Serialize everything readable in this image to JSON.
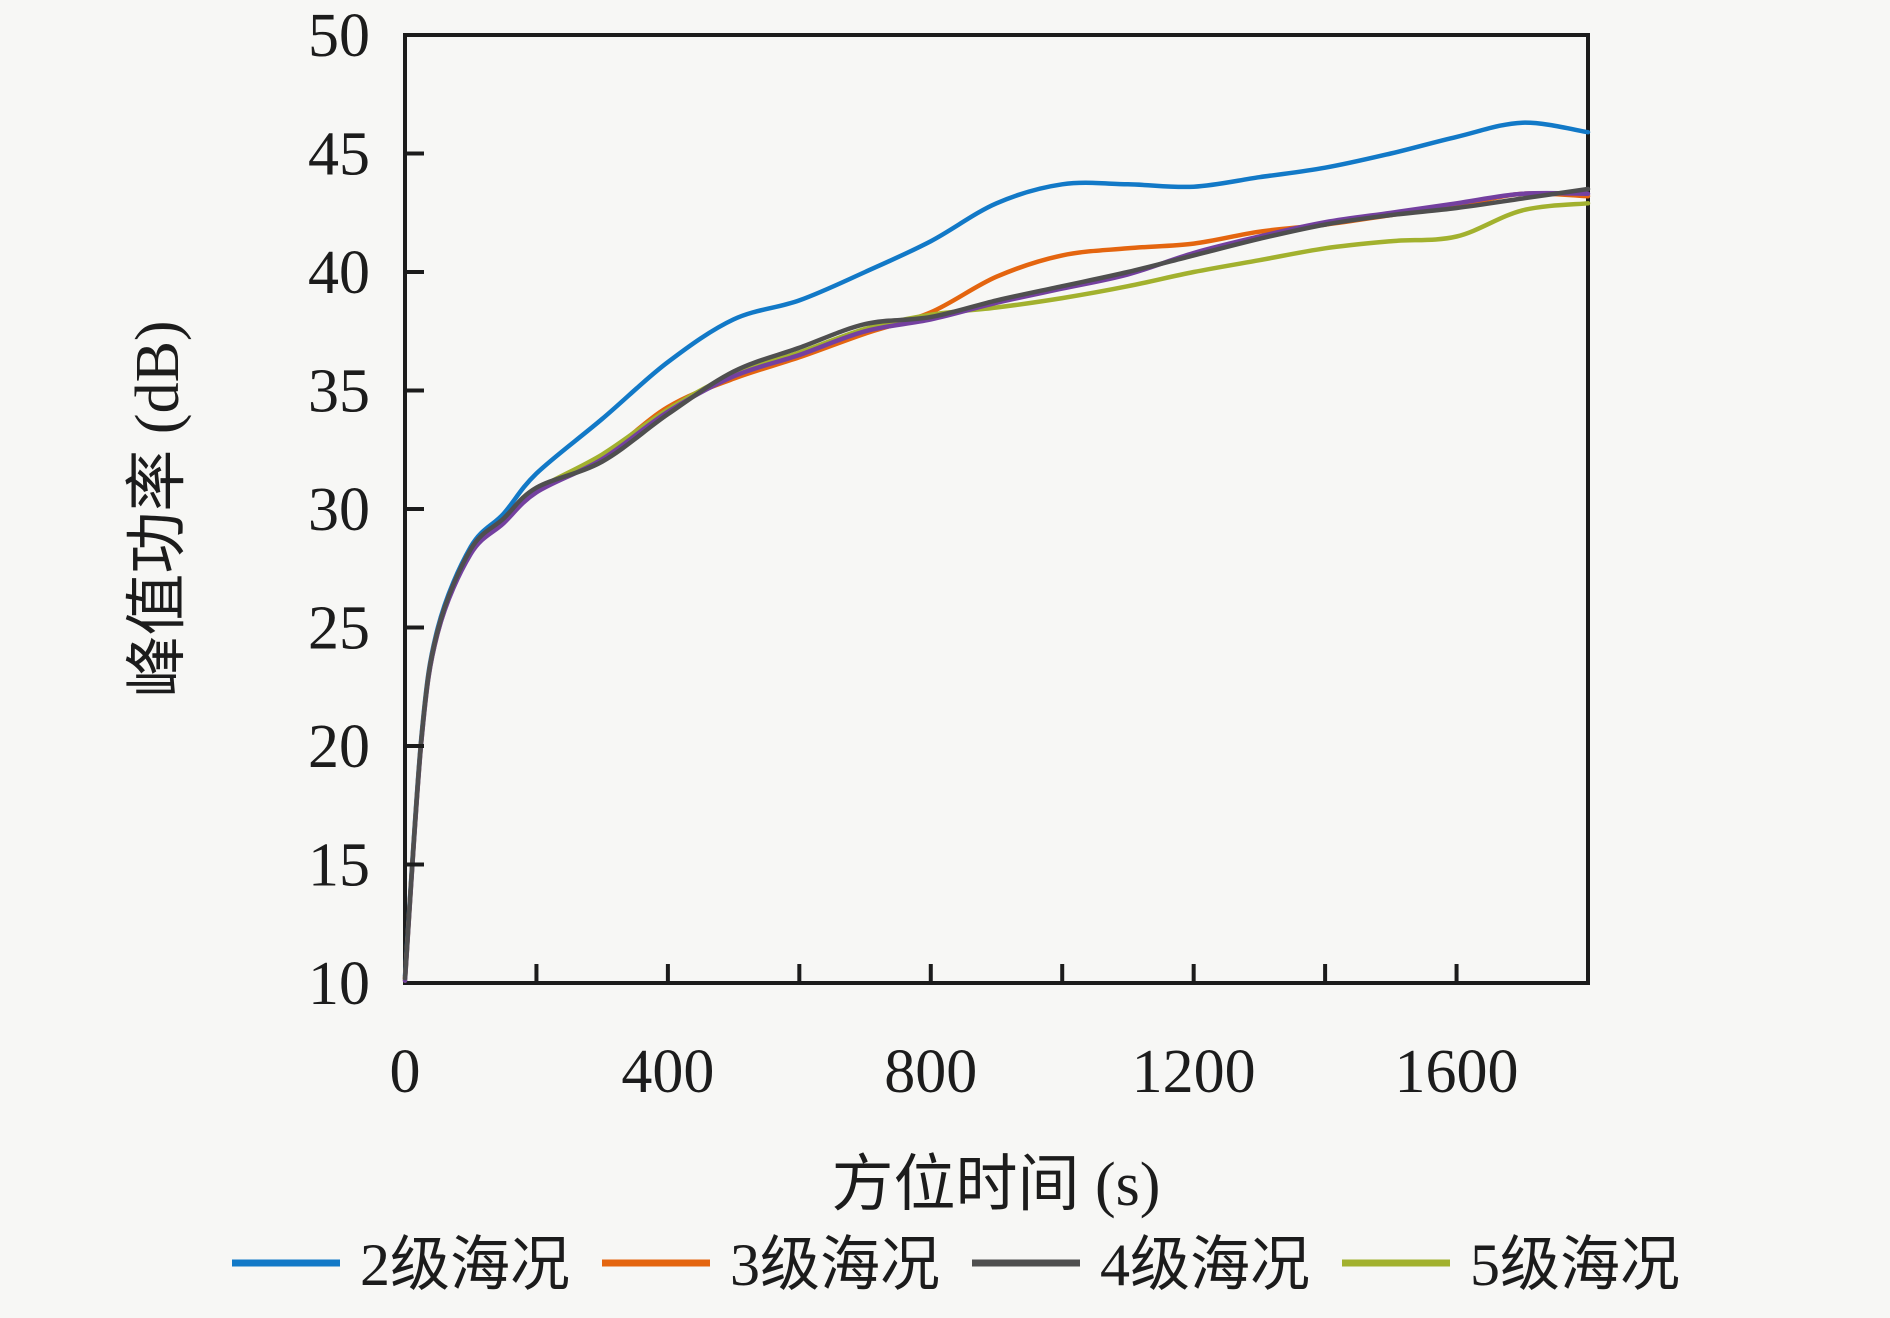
{
  "figure": {
    "background": "#f7f7f5",
    "axis_color": "#1c1c1c"
  },
  "chart_data": {
    "type": "line",
    "title": "",
    "xlabel": "方位时间 (s)",
    "ylabel": "峰值功率 (dB)",
    "xlim": [
      0,
      1800
    ],
    "ylim": [
      10,
      50
    ],
    "x_labeled_ticks": [
      0,
      400,
      800,
      1200,
      1600
    ],
    "x_minor_tick_step": 200,
    "y_tick_step": 5,
    "y_tick_labels": [
      "10",
      "15",
      "20",
      "25",
      "30",
      "35",
      "40",
      "45",
      "50"
    ],
    "grid": false,
    "legend_position": "bottom",
    "x": [
      0,
      25,
      50,
      100,
      150,
      200,
      300,
      400,
      500,
      600,
      700,
      800,
      900,
      1000,
      1100,
      1200,
      1300,
      1400,
      1500,
      1600,
      1700,
      1800
    ],
    "series": [
      {
        "name": "2级海况",
        "color": "#1279c7",
        "in_legend": true,
        "z": 1,
        "values": [
          10.3,
          20.4,
          25.0,
          28.4,
          29.8,
          31.5,
          33.8,
          36.2,
          38.0,
          38.8,
          40.0,
          41.3,
          42.9,
          43.7,
          43.7,
          43.6,
          44.0,
          44.4,
          45.0,
          45.7,
          46.3,
          45.9
        ]
      },
      {
        "name": "3级海况",
        "color": "#e4650f",
        "in_legend": true,
        "z": 2,
        "values": [
          10.2,
          20.3,
          24.9,
          28.2,
          29.5,
          30.8,
          32.2,
          34.3,
          35.5,
          36.4,
          37.4,
          38.3,
          39.8,
          40.7,
          41.0,
          41.2,
          41.7,
          42.0,
          42.4,
          42.8,
          43.3,
          43.2
        ]
      },
      {
        "name": "4级海况",
        "color": "#4f4f4f",
        "in_legend": true,
        "z": 5,
        "values": [
          10.2,
          20.3,
          24.9,
          28.3,
          29.6,
          30.9,
          32.0,
          34.0,
          35.8,
          36.8,
          37.8,
          38.1,
          38.8,
          39.4,
          40.0,
          40.7,
          41.4,
          42.0,
          42.4,
          42.7,
          43.1,
          43.5
        ]
      },
      {
        "name": "5级海况",
        "color": "#a2b12e",
        "in_legend": true,
        "z": 3,
        "values": [
          10.1,
          20.2,
          24.8,
          28.2,
          29.5,
          30.8,
          32.3,
          34.2,
          35.7,
          36.6,
          37.6,
          38.2,
          38.5,
          38.9,
          39.4,
          40.0,
          40.5,
          41.0,
          41.3,
          41.5,
          42.6,
          42.9
        ]
      },
      {
        "name": "",
        "color": "#7440a0",
        "in_legend": false,
        "z": 4,
        "values": [
          10.1,
          20.2,
          24.8,
          28.1,
          29.4,
          30.7,
          32.1,
          34.1,
          35.6,
          36.5,
          37.5,
          38.0,
          38.7,
          39.3,
          39.9,
          40.8,
          41.5,
          42.1,
          42.5,
          42.9,
          43.3,
          43.3
        ]
      }
    ]
  }
}
